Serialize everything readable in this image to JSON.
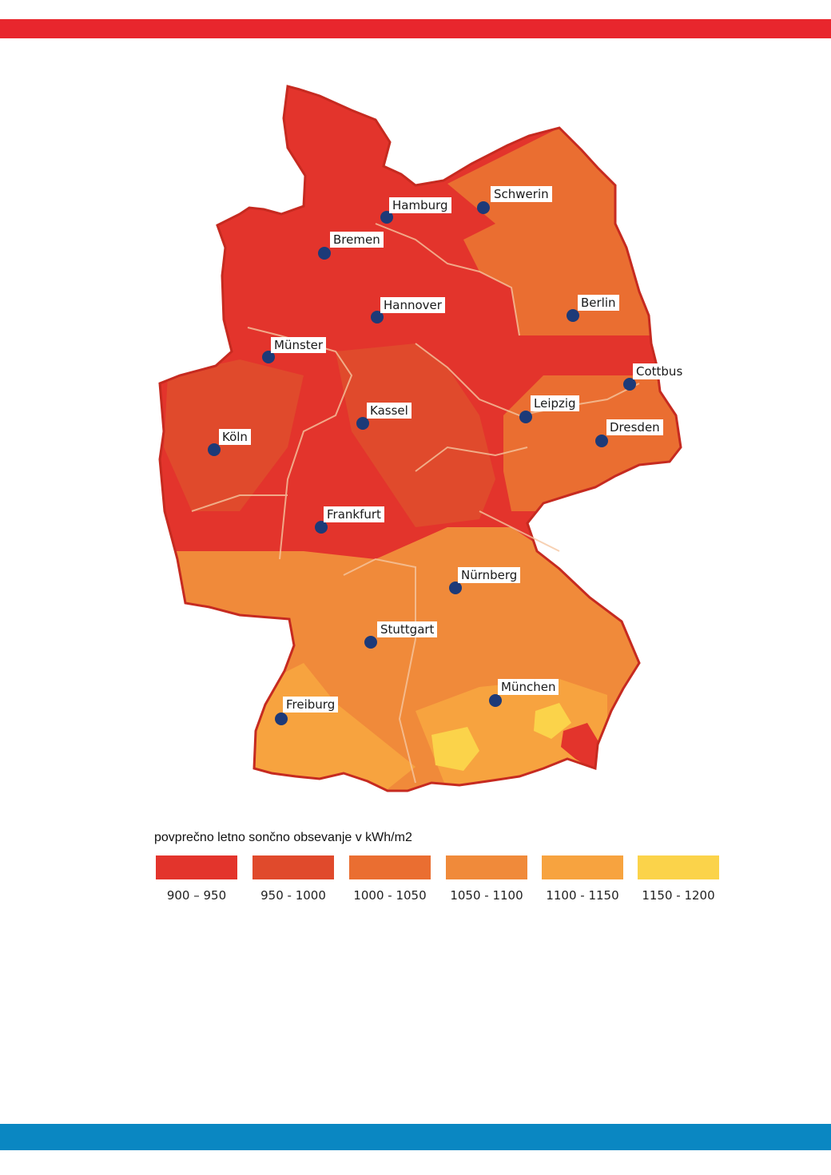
{
  "colors": {
    "top_bar": "#e8262d",
    "bottom_bar": "#0a87c2",
    "class_900_950": "#e3342c",
    "class_950_1000": "#e04a2c",
    "class_1000_1050": "#ea6e31",
    "class_1050_1100": "#f08a3a",
    "class_1100_1150": "#f7a33f",
    "class_1150_1200": "#fbd34a",
    "city_dot": "#1d3a78",
    "border_line": "#f5c6a0"
  },
  "cities": [
    {
      "id": "hamburg",
      "name": "Hamburg"
    },
    {
      "id": "schwerin",
      "name": "Schwerin"
    },
    {
      "id": "bremen",
      "name": "Bremen"
    },
    {
      "id": "hannover",
      "name": "Hannover"
    },
    {
      "id": "berlin",
      "name": "Berlin"
    },
    {
      "id": "munster",
      "name": "Münster"
    },
    {
      "id": "cottbus",
      "name": "Cottbus"
    },
    {
      "id": "kassel",
      "name": "Kassel"
    },
    {
      "id": "leipzig",
      "name": "Leipzig"
    },
    {
      "id": "dresden",
      "name": "Dresden"
    },
    {
      "id": "koln",
      "name": "Köln"
    },
    {
      "id": "frankfurt",
      "name": "Frankfurt"
    },
    {
      "id": "nurnberg",
      "name": "Nürnberg"
    },
    {
      "id": "stuttgart",
      "name": "Stuttgart"
    },
    {
      "id": "munchen",
      "name": "München"
    },
    {
      "id": "freiburg",
      "name": "Freiburg"
    }
  ],
  "legend": {
    "title": "povprečno letno sončno obsevanje v kWh/m2",
    "classes": [
      {
        "range": "900 – 950",
        "color": "#e3342c"
      },
      {
        "range": "950 - 1000",
        "color": "#e04a2c"
      },
      {
        "range": "1000 - 1050",
        "color": "#ea6e31"
      },
      {
        "range": "1050 - 1100",
        "color": "#f08a3a"
      },
      {
        "range": "1100 - 1150",
        "color": "#f7a33f"
      },
      {
        "range": "1150 - 1200",
        "color": "#fbd34a"
      }
    ]
  }
}
